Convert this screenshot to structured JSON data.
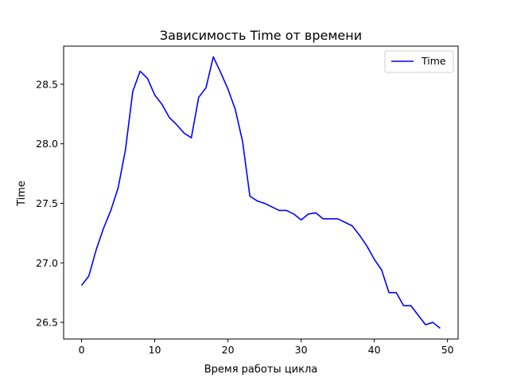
{
  "chart_data": {
    "type": "line",
    "title": "Зависимость Time от времени",
    "xlabel": "Время работы цикла",
    "ylabel": "Time",
    "xlim": [
      -2.45,
      51.45
    ],
    "ylim": [
      26.36,
      28.82
    ],
    "xticks": [
      0,
      10,
      20,
      30,
      40,
      50
    ],
    "yticks": [
      26.5,
      27.0,
      27.5,
      28.0,
      28.5
    ],
    "ytick_labels": [
      "26.5",
      "27.0",
      "27.5",
      "28.0",
      "28.5"
    ],
    "grid": false,
    "legend_position": "top-right",
    "series": [
      {
        "name": "Time",
        "color": "#0000ff",
        "x": [
          0,
          1,
          2,
          3,
          4,
          5,
          6,
          7,
          8,
          9,
          10,
          11,
          12,
          13,
          14,
          15,
          16,
          17,
          18,
          19,
          20,
          21,
          22,
          23,
          24,
          25,
          26,
          27,
          28,
          29,
          30,
          31,
          32,
          33,
          34,
          35,
          36,
          37,
          38,
          39,
          40,
          41,
          42,
          43,
          44,
          45,
          46,
          47,
          48,
          49
        ],
        "y": [
          26.81,
          26.89,
          27.11,
          27.29,
          27.44,
          27.63,
          27.95,
          28.44,
          28.61,
          28.55,
          28.41,
          28.33,
          28.22,
          28.16,
          28.09,
          28.05,
          28.39,
          28.47,
          28.73,
          28.6,
          28.46,
          28.29,
          28.02,
          27.56,
          27.52,
          27.5,
          27.47,
          27.44,
          27.44,
          27.41,
          27.36,
          27.41,
          27.42,
          27.37,
          27.37,
          27.37,
          27.34,
          27.31,
          27.23,
          27.14,
          27.03,
          26.94,
          26.75,
          26.75,
          26.64,
          26.64,
          26.56,
          26.48,
          26.5,
          26.45
        ]
      }
    ]
  }
}
